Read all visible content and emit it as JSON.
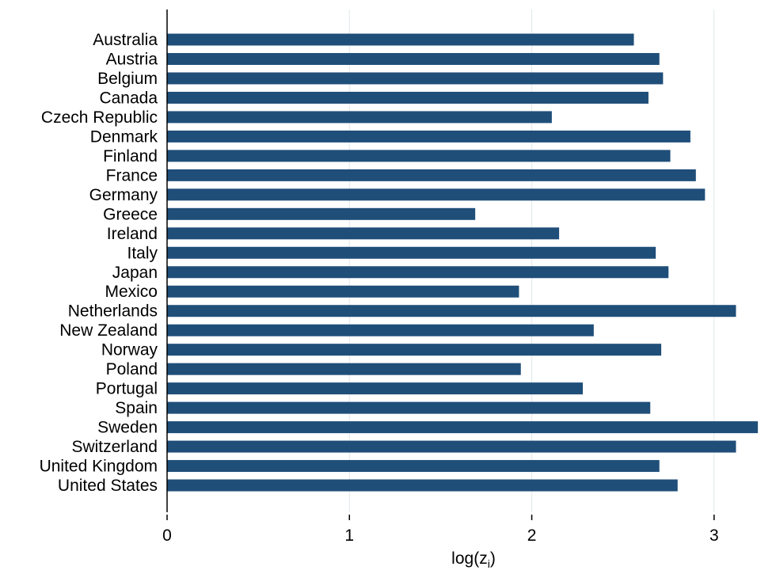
{
  "chart_data": {
    "type": "bar",
    "orientation": "horizontal",
    "categories": [
      "Australia",
      "Austria",
      "Belgium",
      "Canada",
      "Czech Republic",
      "Denmark",
      "Finland",
      "France",
      "Germany",
      "Greece",
      "Ireland",
      "Italy",
      "Japan",
      "Mexico",
      "Netherlands",
      "New Zealand",
      "Norway",
      "Poland",
      "Portugal",
      "Spain",
      "Sweden",
      "Switzerland",
      "United Kingdom",
      "United States"
    ],
    "values": [
      2.56,
      2.7,
      2.72,
      2.64,
      2.11,
      2.87,
      2.76,
      2.9,
      2.95,
      1.69,
      2.15,
      2.68,
      2.75,
      1.93,
      3.12,
      2.34,
      2.71,
      1.94,
      2.28,
      2.65,
      3.24,
      3.12,
      2.7,
      2.8
    ],
    "xlabel": "log(z",
    "xlabel_sub": "i",
    "xlabel_close": ")",
    "ylabel": "",
    "xlim": [
      0,
      3.27
    ],
    "xticks": [
      0,
      1,
      2,
      3
    ],
    "grid": "vertical",
    "bar_color": "#1f4e79",
    "grid_color": "#e4ecef"
  }
}
